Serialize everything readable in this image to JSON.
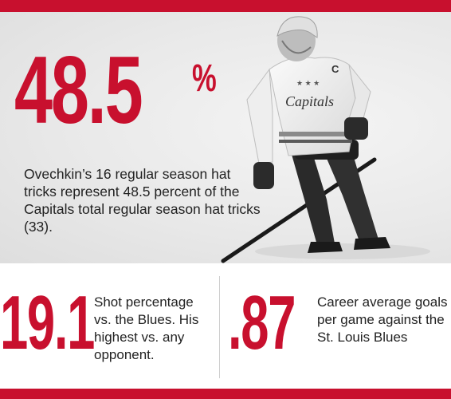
{
  "hero": {
    "big_number": "48.5",
    "big_unit": "%",
    "description": "Ovechkin’s 16 regular season hat tricks represent 48.5 percent of the Capitals total regular season hat tricks (33).",
    "jersey_wordmark": "Capitals",
    "jersey_letter": "C"
  },
  "stats": [
    {
      "value": "19.1",
      "text": "Shot percentage vs. the Blues. His highest vs. any opponent."
    },
    {
      "value": ".87",
      "text": "Career average goals per game against the St. Louis Blues"
    }
  ],
  "colors": {
    "accent": "#c8102e",
    "text": "#222222",
    "background": "#ffffff",
    "hero_bg": "#e9e9e9"
  }
}
